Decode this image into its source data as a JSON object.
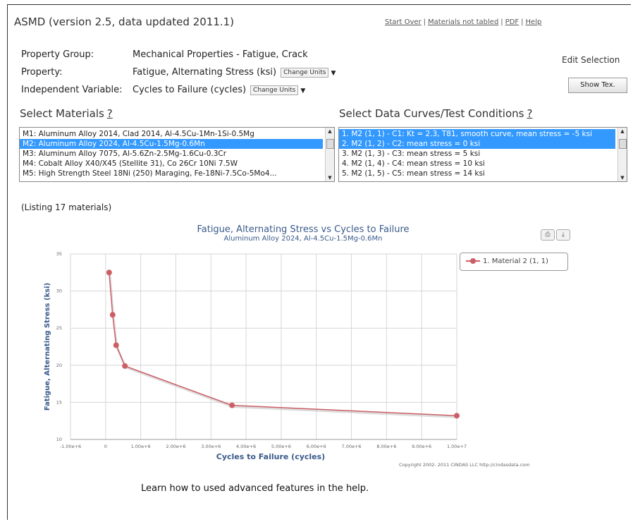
{
  "app": {
    "title": "ASMD (version 2.5, data updated 2011.1)",
    "links": [
      "Start Over",
      "Materials not tabled",
      "PDF",
      "Help"
    ]
  },
  "selection": {
    "property_group_label": "Property Group:",
    "property_group_value": "Mechanical Properties - Fatigue, Crack",
    "property_label": "Property:",
    "property_value": "Fatigue, Alternating Stress (ksi)",
    "property_change": "Change Units",
    "indep_label": "Independent Variable:",
    "indep_value": "Cycles to Failure (cycles)",
    "indep_change": "Change Units",
    "edit_selection": "Edit Selection",
    "show_button": "Show Tex."
  },
  "materials": {
    "heading": "Select Materials",
    "help": "?",
    "items": [
      "M1: Aluminum Alloy 2014, Clad 2014, Al-4.5Cu-1Mn-1Si-0.5Mg",
      "M2: Aluminum Alloy 2024, Al-4.5Cu-1.5Mg-0.6Mn",
      "M3: Aluminum Alloy 7075, Al-5.6Zn-2.5Mg-1.6Cu-0.3Cr",
      "M4: Cobalt Alloy X40/X45 (Stellite 31), Co 26Cr 10Ni 7.5W",
      "M5: High Strength Steel 18Ni (250) Maraging, Fe-18Ni-7.5Co-5Mo4..."
    ],
    "selected_index": 1,
    "listing": "(Listing 17 materials)"
  },
  "curves": {
    "heading": "Select Data Curves/Test Conditions",
    "help": "?",
    "items": [
      "1. M2 (1, 1) - C1: Kt = 2.3, T81, smooth curve, mean stress = -5 ksi",
      "2. M2 (1, 2) - C2: mean stress = 0 ksi",
      "3. M2 (1, 3) - C3: mean stress = 5 ksi",
      "4. M2 (1, 4) - C4: mean stress = 10 ksi",
      "5. M2 (1, 5) - C5: mean stress = 14 ksi"
    ],
    "selected_indices": [
      0,
      1
    ]
  },
  "chart": {
    "print_icon": "print-icon",
    "export_icon": "download-icon",
    "copyright": "Copyright 2002- 2011 CINDAS LLC http://cindasdata.com",
    "help_line": "Learn how to used advanced features in the help."
  },
  "chart_data": {
    "type": "line",
    "title": "Fatigue, Alternating Stress vs Cycles to Failure",
    "subtitle": "Aluminum Alloy 2024, Al-4.5Cu-1.5Mg-0.6Mn",
    "xlabel": "Cycles to Failure (cycles)",
    "ylabel": "Fatigue, Alternating Stress (ksi)",
    "xlim": [
      -1000000,
      10000000
    ],
    "ylim": [
      10,
      35
    ],
    "x_ticks": [
      -1000000,
      0,
      1000000,
      2000000,
      3000000,
      4000000,
      5000000,
      6000000,
      7000000,
      8000000,
      9000000,
      10000000
    ],
    "x_tick_labels": [
      "-1.00e+6",
      "0",
      "1.00e+6",
      "2.00e+6",
      "3.00e+6",
      "4.00e+6",
      "5.00e+6",
      "6.00e+6",
      "7.00e+6",
      "8.00e+6",
      "9.00e+6",
      "1.00e+7"
    ],
    "y_ticks": [
      10,
      15,
      20,
      25,
      30,
      35
    ],
    "y_tick_labels": [
      "10",
      "15",
      "20",
      "25",
      "30",
      "35"
    ],
    "grid": true,
    "legend_position": "top-right",
    "series": [
      {
        "name": "1. Material 2 (1, 1)",
        "color": "#cc5f66",
        "x": [
          100000,
          200000,
          300000,
          550000,
          3600000,
          10000000
        ],
        "y": [
          32.5,
          26.8,
          22.7,
          19.9,
          14.6,
          13.2
        ]
      }
    ]
  }
}
